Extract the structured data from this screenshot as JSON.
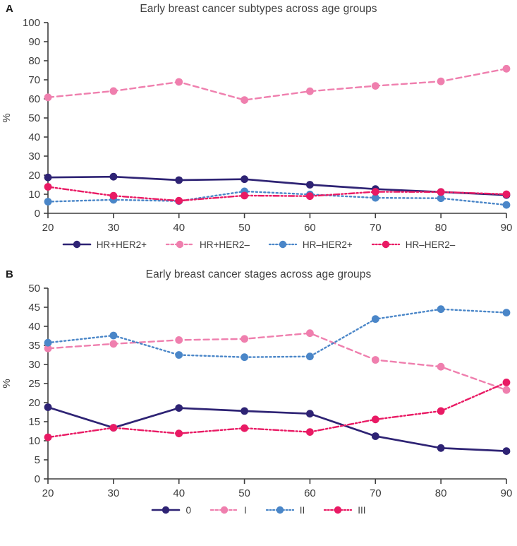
{
  "colors": {
    "navy": "#2e2374",
    "pink": "#ef7fae",
    "blue": "#4a86c8",
    "crimson": "#e91a64",
    "axis": "#3d3d3d",
    "text": "#3d3d3d"
  },
  "chart_data": [
    {
      "type": "line",
      "panel_letter": "A",
      "title": "Early breast cancer subtypes across age groups",
      "xlabel": "",
      "ylabel": "%",
      "ylim": [
        0,
        100
      ],
      "ytick_step": 10,
      "yticks": [
        0,
        10,
        20,
        30,
        40,
        50,
        60,
        70,
        80,
        90,
        100
      ],
      "x": [
        20,
        30,
        40,
        50,
        60,
        70,
        80,
        90
      ],
      "grid": false,
      "legend_position": "bottom",
      "series": [
        {
          "name": "HR+HER2+",
          "color_key": "navy",
          "dash": "solid",
          "values": [
            18.8,
            19.2,
            17.4,
            17.9,
            15.0,
            12.7,
            11.2,
            9.6
          ]
        },
        {
          "name": "HR+HER2–",
          "color_key": "pink",
          "dash": "dashed",
          "values": [
            60.8,
            64.1,
            68.9,
            59.4,
            64.0,
            66.8,
            69.2,
            75.8
          ]
        },
        {
          "name": "HR–HER2+",
          "color_key": "blue",
          "dash": "dotted",
          "values": [
            6.1,
            7.1,
            6.4,
            11.5,
            9.9,
            8.1,
            7.9,
            4.4
          ]
        },
        {
          "name": "HR–HER2–",
          "color_key": "crimson",
          "dash": "dashdot",
          "values": [
            13.9,
            9.2,
            6.6,
            9.3,
            9.0,
            11.3,
            11.2,
            10.0
          ]
        }
      ]
    },
    {
      "type": "line",
      "panel_letter": "B",
      "title": "Early breast cancer stages across age groups",
      "xlabel": "",
      "ylabel": "%",
      "ylim": [
        0,
        50
      ],
      "ytick_step": 5,
      "yticks": [
        0,
        5,
        10,
        15,
        20,
        25,
        30,
        35,
        40,
        45,
        50
      ],
      "x": [
        20,
        30,
        40,
        50,
        60,
        70,
        80,
        90
      ],
      "grid": false,
      "legend_position": "bottom",
      "series": [
        {
          "name": "0",
          "color_key": "navy",
          "dash": "solid",
          "values": [
            18.8,
            13.4,
            18.6,
            17.8,
            17.1,
            11.2,
            8.1,
            7.3
          ]
        },
        {
          "name": "I",
          "color_key": "pink",
          "dash": "dashed",
          "values": [
            34.2,
            35.4,
            36.4,
            36.7,
            38.2,
            31.2,
            29.4,
            23.3
          ]
        },
        {
          "name": "II",
          "color_key": "blue",
          "dash": "dotted",
          "values": [
            35.7,
            37.6,
            32.5,
            31.9,
            32.1,
            41.9,
            44.5,
            43.6
          ]
        },
        {
          "name": "III",
          "color_key": "crimson",
          "dash": "dashdot",
          "values": [
            10.9,
            13.4,
            11.9,
            13.3,
            12.3,
            15.6,
            17.8,
            25.3
          ]
        }
      ]
    }
  ]
}
